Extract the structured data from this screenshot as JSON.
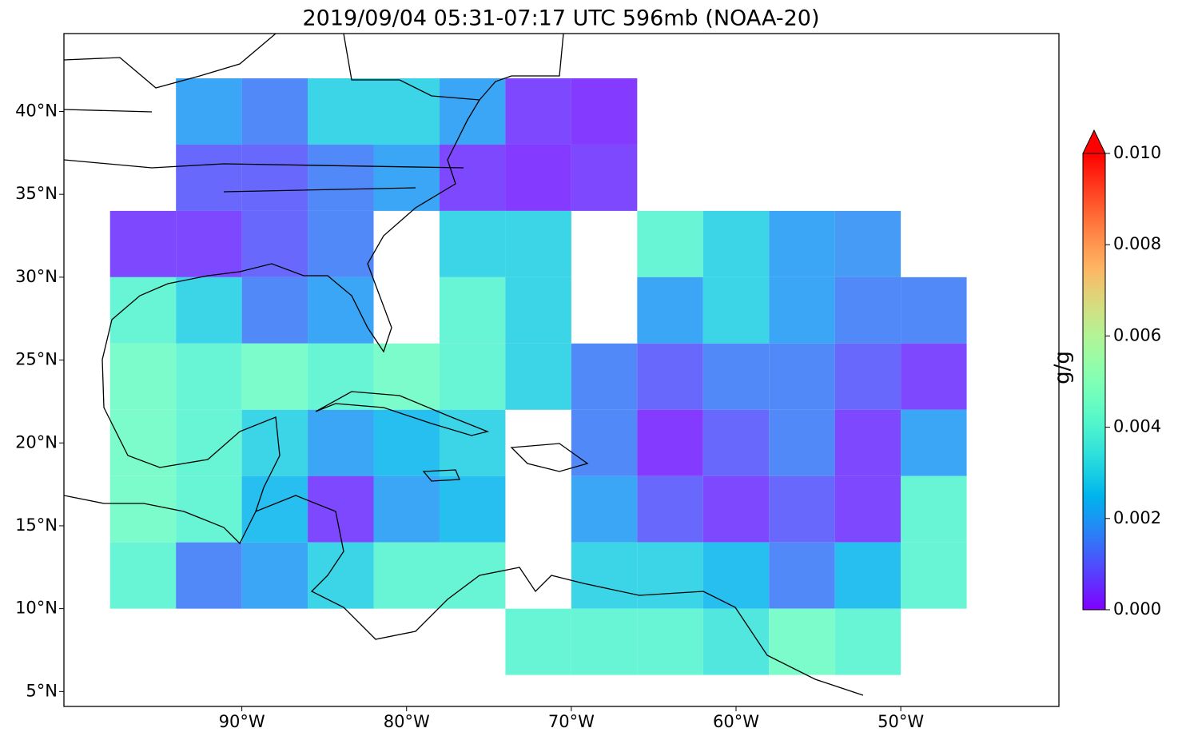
{
  "chart_data": {
    "type": "grid-map",
    "title": "2019/09/04 05:31-07:17 UTC 596mb (NOAA-20)",
    "xlim": [
      -100.8,
      -40.4
    ],
    "ylim": [
      4.1,
      44.7
    ],
    "xticks": [
      {
        "value": -90,
        "label": "90°W"
      },
      {
        "value": -80,
        "label": "80°W"
      },
      {
        "value": -70,
        "label": "70°W"
      },
      {
        "value": -60,
        "label": "60°W"
      },
      {
        "value": -50,
        "label": "50°W"
      }
    ],
    "yticks": [
      {
        "value": 5,
        "label": "5°N"
      },
      {
        "value": 10,
        "label": "10°N"
      },
      {
        "value": 15,
        "label": "15°N"
      },
      {
        "value": 20,
        "label": "20°N"
      },
      {
        "value": 25,
        "label": "25°N"
      },
      {
        "value": 30,
        "label": "30°N"
      },
      {
        "value": 35,
        "label": "35°N"
      },
      {
        "value": 40,
        "label": "40°N"
      }
    ],
    "colorbar": {
      "label": "g/g",
      "colormap": "rainbow",
      "lim": [
        0,
        0.01
      ],
      "ticks": [
        {
          "value": 0,
          "label": "0.000"
        },
        {
          "value": 0.002,
          "label": "0.002"
        },
        {
          "value": 0.004,
          "label": "0.004"
        },
        {
          "value": 0.006,
          "label": "0.006"
        },
        {
          "value": 0.008,
          "label": "0.008"
        },
        {
          "value": 0.01,
          "label": "0.010"
        }
      ],
      "extend_color": "#ff0000"
    },
    "cell_size": 4,
    "lon": [
      -96,
      -92,
      -88,
      -84,
      -80,
      -76,
      -72,
      -68,
      -64,
      -60,
      -56,
      -52,
      -48,
      -44
    ],
    "lat": [
      40,
      36,
      32,
      28,
      24,
      20,
      16,
      12,
      8
    ],
    "values": [
      [
        null,
        0.002,
        0.0015,
        0.003,
        0.003,
        0.002,
        0.0005,
        0.0003,
        null,
        null,
        null,
        null,
        null,
        null
      ],
      [
        null,
        0.001,
        0.001,
        0.0015,
        0.002,
        0.0005,
        0.0003,
        0.0005,
        null,
        null,
        null,
        null,
        null,
        null
      ],
      [
        0.0005,
        0.0005,
        0.001,
        0.0015,
        null,
        0.003,
        0.003,
        null,
        0.004,
        0.003,
        0.002,
        0.0018,
        null,
        null
      ],
      [
        0.004,
        0.003,
        0.0015,
        0.002,
        null,
        0.004,
        0.003,
        null,
        0.002,
        0.003,
        0.002,
        0.0015,
        0.0015,
        null
      ],
      [
        0.0045,
        0.004,
        0.0045,
        0.004,
        0.0045,
        0.004,
        0.003,
        0.0015,
        0.001,
        0.0015,
        0.0015,
        0.001,
        0.0005,
        null
      ],
      [
        0.0045,
        0.004,
        0.003,
        0.002,
        0.0025,
        0.003,
        null,
        0.0015,
        0.0003,
        0.001,
        0.0015,
        0.0005,
        0.002,
        null
      ],
      [
        0.0045,
        0.004,
        0.0025,
        0.0005,
        0.002,
        0.0025,
        null,
        0.002,
        0.001,
        0.0005,
        0.001,
        0.0005,
        0.004,
        null
      ],
      [
        0.004,
        0.0015,
        0.002,
        0.003,
        0.004,
        0.004,
        null,
        0.003,
        0.003,
        0.0025,
        0.0015,
        0.0025,
        0.004,
        null
      ],
      [
        null,
        null,
        null,
        null,
        null,
        null,
        0.004,
        0.004,
        0.004,
        0.0035,
        0.0045,
        0.004,
        null,
        null
      ]
    ]
  }
}
